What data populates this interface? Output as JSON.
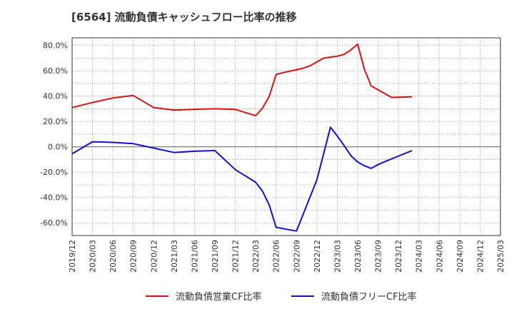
{
  "chart_data": {
    "type": "line",
    "title": "[6564]  流動負債キャッシュフロー比率の推移",
    "xlabel": "",
    "ylabel": "",
    "ylim": [
      -70,
      86
    ],
    "y_ticks": [
      80,
      60,
      40,
      20,
      0,
      -20,
      -40,
      -60
    ],
    "y_tick_labels": [
      "80.0%",
      "60.0%",
      "40.0%",
      "20.0%",
      "0.0%",
      "-20.0%",
      "-40.0%",
      "-60.0%"
    ],
    "x_tick_labels": [
      "2019/12",
      "2020/03",
      "2020/06",
      "2020/09",
      "2020/12",
      "2021/03",
      "2021/06",
      "2021/09",
      "2021/12",
      "2022/03",
      "2022/06",
      "2022/09",
      "2022/12",
      "2023/03",
      "2023/06",
      "2023/09",
      "2023/12",
      "2024/03",
      "2024/06",
      "2024/09",
      "2024/12",
      "2025/03"
    ],
    "x_unit": "month_index",
    "x_range": [
      0,
      63
    ],
    "grid": true,
    "legend_position": "bottom",
    "series": [
      {
        "name": "流動負債営業CF比率",
        "color": "#dd1111",
        "x": [
          0,
          3,
          6,
          9,
          12,
          15,
          18,
          21,
          24,
          27,
          28,
          29,
          30,
          31,
          34,
          35,
          36,
          37,
          39,
          40,
          41,
          42,
          43,
          44,
          47,
          50
        ],
        "values": [
          31,
          35,
          38.5,
          40.5,
          31,
          29,
          29.5,
          30,
          29.5,
          24.5,
          30.5,
          40,
          57,
          58.5,
          62,
          64,
          67,
          70,
          71.5,
          73,
          76.5,
          81,
          61,
          48,
          39,
          39.5
        ]
      },
      {
        "name": "流動負債フリーCF比率",
        "color": "#1111cc",
        "x": [
          0,
          3,
          6,
          9,
          12,
          15,
          18,
          21,
          24,
          27,
          28,
          29,
          30,
          33,
          36,
          38,
          39,
          40,
          41,
          42,
          43,
          44,
          45,
          47,
          50
        ],
        "values": [
          -5.5,
          4,
          3.5,
          2.5,
          -1,
          -4.5,
          -3.5,
          -3,
          -18,
          -28,
          -35,
          -46,
          -63.5,
          -66.5,
          -26,
          15.5,
          8.5,
          1,
          -7,
          -12,
          -15,
          -17,
          -14,
          -9.5,
          -3
        ]
      }
    ]
  }
}
